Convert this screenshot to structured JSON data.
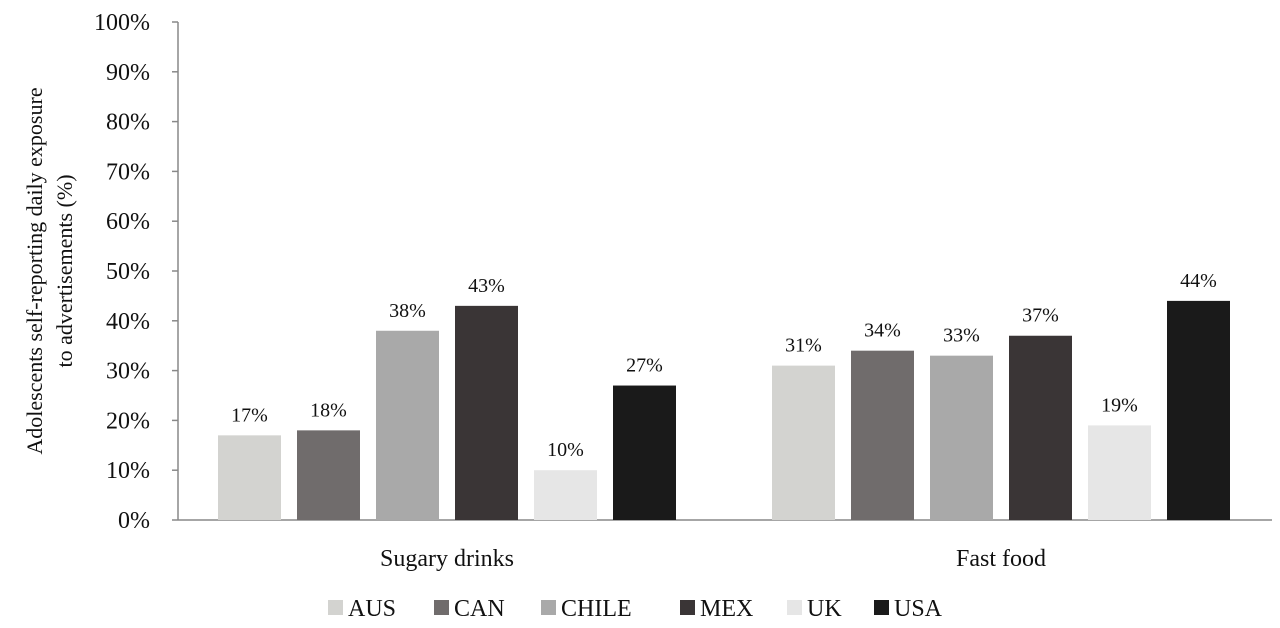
{
  "chart_data": {
    "type": "bar",
    "ylabel_lines": [
      "Adolescents self-reporting daily exposure",
      "to advertisements  (%)"
    ],
    "xlabel": "",
    "categories": [
      "Sugary drinks",
      "Fast food"
    ],
    "ylim": [
      0,
      100
    ],
    "yticks": [
      0,
      10,
      20,
      30,
      40,
      50,
      60,
      70,
      80,
      90,
      100
    ],
    "ytick_labels": [
      "0%",
      "10%",
      "20%",
      "30%",
      "40%",
      "50%",
      "60%",
      "70%",
      "80%",
      "90%",
      "100%"
    ],
    "legend_position": "bottom",
    "grid": false,
    "series": [
      {
        "name": "AUS",
        "color": "#d3d3d0",
        "values": [
          17,
          31
        ],
        "labels": [
          "17%",
          "31%"
        ]
      },
      {
        "name": "CAN",
        "color": "#706c6c",
        "values": [
          18,
          34
        ],
        "labels": [
          "18%",
          "34%"
        ]
      },
      {
        "name": "CHILE",
        "color": "#a9a9a9",
        "values": [
          38,
          33
        ],
        "labels": [
          "38%",
          "33%"
        ]
      },
      {
        "name": "MEX",
        "color": "#3a3536",
        "values": [
          43,
          37
        ],
        "labels": [
          "43%",
          "37%"
        ]
      },
      {
        "name": "UK",
        "color": "#e6e6e6",
        "values": [
          10,
          19
        ],
        "labels": [
          "10%",
          "19%"
        ]
      },
      {
        "name": "USA",
        "color": "#1a1a1a",
        "values": [
          27,
          44
        ],
        "labels": [
          "27%",
          "44%"
        ]
      }
    ]
  }
}
